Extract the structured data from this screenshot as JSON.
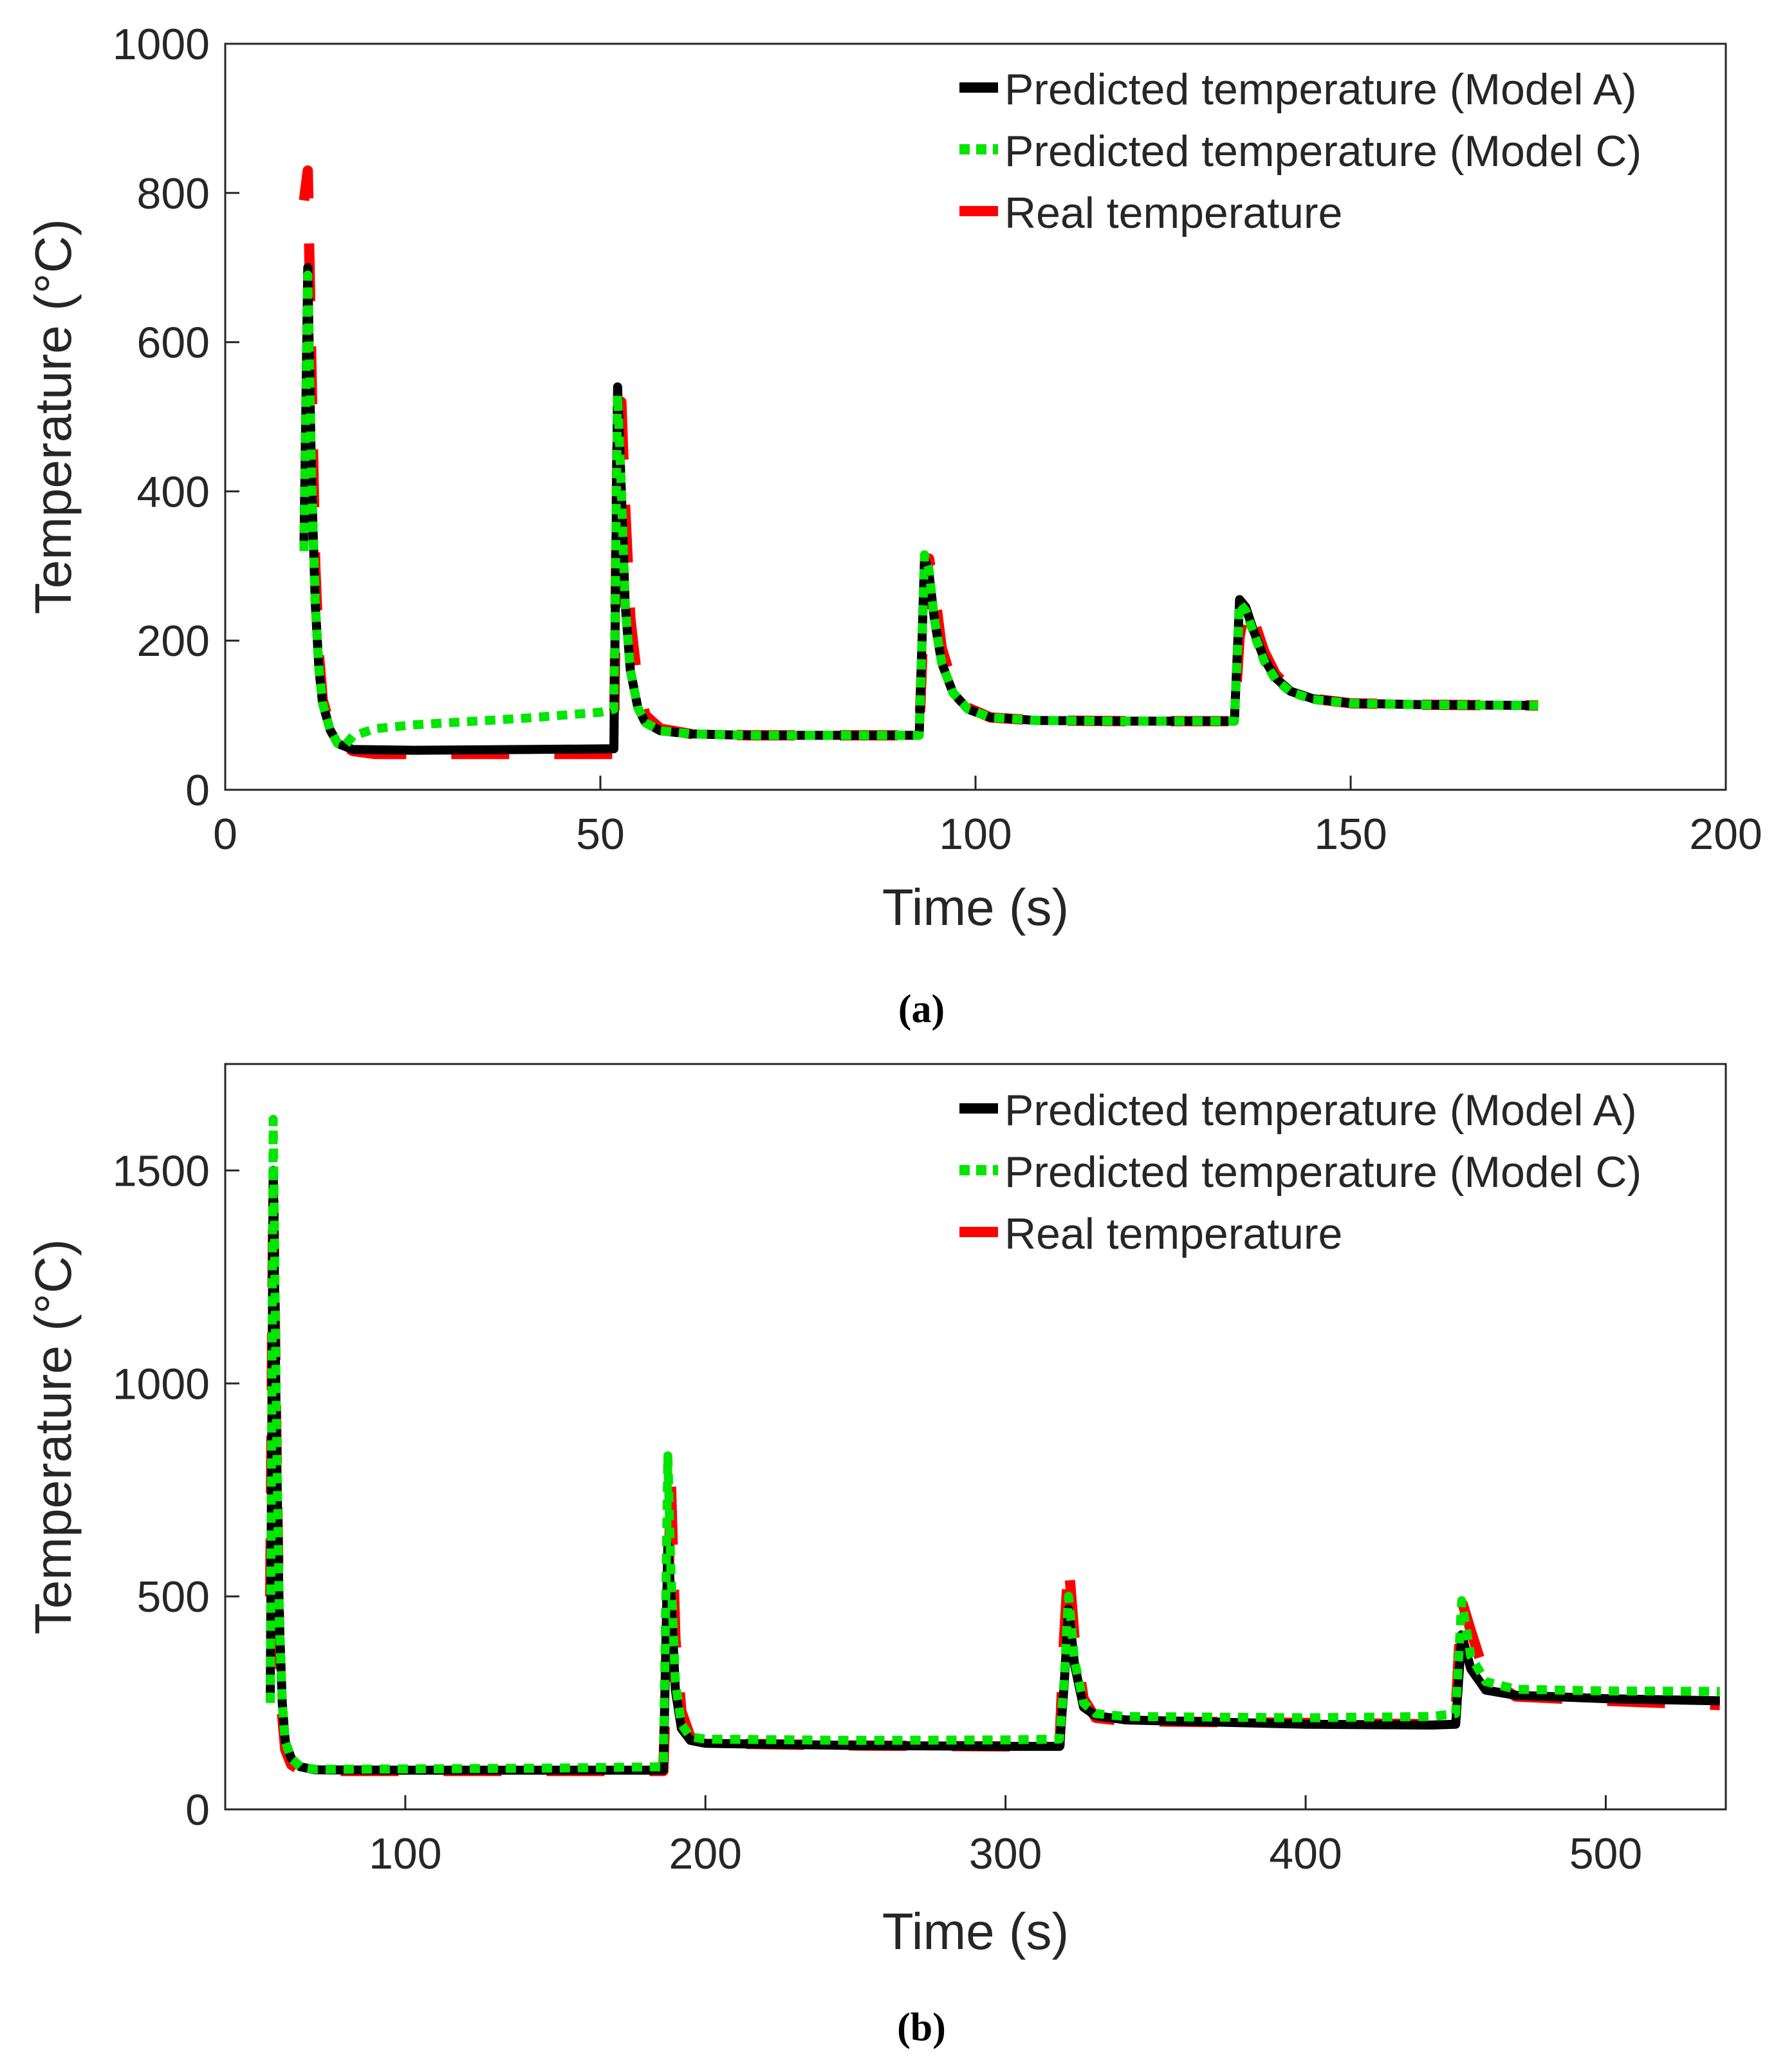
{
  "chart_data": [
    {
      "type": "line",
      "caption": "(a)",
      "xlabel": "Time (s)",
      "ylabel": "Temperature (°C)",
      "xlim": [
        0,
        200
      ],
      "ylim": [
        0,
        1000
      ],
      "xticks": [
        0,
        50,
        100,
        150,
        200
      ],
      "yticks": [
        0,
        200,
        400,
        600,
        800,
        1000
      ],
      "grid": false,
      "legend_position": "top-right",
      "series": [
        {
          "name": "Predicted temperature (Model A)",
          "color": "#000000",
          "style": "solid",
          "points": [
            [
              10.5,
              330
            ],
            [
              11,
              700
            ],
            [
              11.5,
              420
            ],
            [
              12,
              250
            ],
            [
              12.5,
              160
            ],
            [
              13,
              115
            ],
            [
              14,
              80
            ],
            [
              15,
              62
            ],
            [
              17,
              54
            ],
            [
              25,
              53
            ],
            [
              40,
              54
            ],
            [
              51.8,
              55
            ],
            [
              52.3,
              540
            ],
            [
              52.8,
              400
            ],
            [
              53.3,
              250
            ],
            [
              54,
              160
            ],
            [
              55,
              110
            ],
            [
              56,
              90
            ],
            [
              58,
              79
            ],
            [
              62,
              75
            ],
            [
              70,
              73
            ],
            [
              80,
              73
            ],
            [
              92.5,
              73
            ],
            [
              93.2,
              310
            ],
            [
              93.8,
              290
            ],
            [
              94.5,
              230
            ],
            [
              95.5,
              170
            ],
            [
              97,
              130
            ],
            [
              99,
              108
            ],
            [
              102,
              97
            ],
            [
              108,
              93
            ],
            [
              120,
              92
            ],
            [
              134.5,
              92
            ],
            [
              135.2,
              255
            ],
            [
              136,
              245
            ],
            [
              137,
              215
            ],
            [
              138.5,
              175
            ],
            [
              140,
              150
            ],
            [
              142,
              132
            ],
            [
              145,
              122
            ],
            [
              150,
              116
            ],
            [
              160,
              114
            ],
            [
              175,
              113
            ]
          ]
        },
        {
          "name": "Predicted temperature (Model C)",
          "color": "#00e600",
          "style": "dotted",
          "points": [
            [
              10.5,
              320
            ],
            [
              11,
              690
            ],
            [
              11.5,
              420
            ],
            [
              12,
              250
            ],
            [
              12.5,
              160
            ],
            [
              13,
              115
            ],
            [
              14,
              80
            ],
            [
              15,
              62
            ],
            [
              16,
              60
            ],
            [
              17,
              72
            ],
            [
              20,
              82
            ],
            [
              25,
              87
            ],
            [
              30,
              90
            ],
            [
              40,
              96
            ],
            [
              50,
              104
            ],
            [
              51.8,
              108
            ],
            [
              52.3,
              530
            ],
            [
              52.8,
              400
            ],
            [
              53.3,
              250
            ],
            [
              54,
              160
            ],
            [
              55,
              110
            ],
            [
              56,
              90
            ],
            [
              58,
              79
            ],
            [
              62,
              75
            ],
            [
              70,
              73
            ],
            [
              80,
              73
            ],
            [
              92.5,
              73
            ],
            [
              93.2,
              315
            ],
            [
              93.8,
              295
            ],
            [
              94.5,
              230
            ],
            [
              95.5,
              170
            ],
            [
              97,
              130
            ],
            [
              99,
              108
            ],
            [
              102,
              97
            ],
            [
              108,
              93
            ],
            [
              120,
              92
            ],
            [
              134.5,
              92
            ],
            [
              135.2,
              250
            ],
            [
              136,
              240
            ],
            [
              137,
              212
            ],
            [
              138.5,
              172
            ],
            [
              140,
              148
            ],
            [
              142,
              131
            ],
            [
              145,
              121
            ],
            [
              150,
              116
            ],
            [
              160,
              114
            ],
            [
              175,
              113
            ]
          ]
        },
        {
          "name": "Real temperature",
          "color": "#ff0000",
          "style": "dashed",
          "points": [
            [
              10.5,
              790
            ],
            [
              11,
              830
            ],
            [
              11.5,
              560
            ],
            [
              12,
              300
            ],
            [
              12.5,
              180
            ],
            [
              13,
              120
            ],
            [
              14,
              85
            ],
            [
              15,
              64
            ],
            [
              17,
              52
            ],
            [
              20,
              48
            ],
            [
              30,
              48
            ],
            [
              40,
              48
            ],
            [
              51.8,
              48
            ],
            [
              52.3,
              480
            ],
            [
              52.8,
              520
            ],
            [
              53.3,
              380
            ],
            [
              54,
              230
            ],
            [
              55,
              140
            ],
            [
              56,
              100
            ],
            [
              58,
              82
            ],
            [
              62,
              75
            ],
            [
              70,
              73
            ],
            [
              80,
              73
            ],
            [
              92.5,
              73
            ],
            [
              93.2,
              260
            ],
            [
              93.8,
              310
            ],
            [
              94.5,
              270
            ],
            [
              95.5,
              190
            ],
            [
              97,
              140
            ],
            [
              99,
              110
            ],
            [
              102,
              97
            ],
            [
              108,
              93
            ],
            [
              120,
              92
            ],
            [
              134.5,
              92
            ],
            [
              135.2,
              205
            ],
            [
              136,
              248
            ],
            [
              137,
              230
            ],
            [
              138.5,
              185
            ],
            [
              140,
              155
            ],
            [
              142,
              134
            ],
            [
              145,
              122
            ],
            [
              150,
              116
            ],
            [
              160,
              114
            ],
            [
              175,
              113
            ]
          ]
        }
      ]
    },
    {
      "type": "line",
      "caption": "(b)",
      "xlabel": "Time (s)",
      "ylabel": "Temperature (°C)",
      "xlim": [
        40,
        540
      ],
      "ylim": [
        0,
        1750
      ],
      "xticks": [
        100,
        200,
        300,
        400,
        500
      ],
      "yticks": [
        0,
        500,
        1000,
        1500
      ],
      "grid": false,
      "legend_position": "top-right",
      "series": [
        {
          "name": "Predicted temperature (Model A)",
          "color": "#000000",
          "style": "solid",
          "points": [
            [
              55,
              250
            ],
            [
              56,
              1500
            ],
            [
              57,
              900
            ],
            [
              58,
              450
            ],
            [
              59,
              250
            ],
            [
              60,
              160
            ],
            [
              62,
              120
            ],
            [
              65,
              100
            ],
            [
              70,
              93
            ],
            [
              100,
              92
            ],
            [
              150,
              92
            ],
            [
              186,
              92
            ],
            [
              187.5,
              620
            ],
            [
              188.5,
              500
            ],
            [
              190,
              280
            ],
            [
              192,
              190
            ],
            [
              195,
              162
            ],
            [
              200,
              155
            ],
            [
              250,
              150
            ],
            [
              300,
              148
            ],
            [
              318,
              148
            ],
            [
              319.5,
              290
            ],
            [
              321,
              470
            ],
            [
              323,
              340
            ],
            [
              326,
              240
            ],
            [
              330,
              220
            ],
            [
              340,
              210
            ],
            [
              400,
              200
            ],
            [
              442,
              198
            ],
            [
              450,
              200
            ],
            [
              452,
              410
            ],
            [
              455,
              330
            ],
            [
              460,
              280
            ],
            [
              470,
              268
            ],
            [
              500,
              260
            ],
            [
              538,
              255
            ]
          ]
        },
        {
          "name": "Predicted temperature (Model C)",
          "color": "#00e600",
          "style": "dotted",
          "points": [
            [
              55,
              250
            ],
            [
              56,
              1620
            ],
            [
              57,
              950
            ],
            [
              58,
              450
            ],
            [
              59,
              250
            ],
            [
              60,
              160
            ],
            [
              62,
              120
            ],
            [
              65,
              100
            ],
            [
              70,
              94
            ],
            [
              100,
              95
            ],
            [
              150,
              97
            ],
            [
              186,
              100
            ],
            [
              187.5,
              830
            ],
            [
              188.5,
              560
            ],
            [
              190,
              300
            ],
            [
              192,
              200
            ],
            [
              195,
              170
            ],
            [
              200,
              165
            ],
            [
              250,
              162
            ],
            [
              300,
              163
            ],
            [
              318,
              165
            ],
            [
              319.5,
              300
            ],
            [
              321,
              500
            ],
            [
              323,
              350
            ],
            [
              326,
              250
            ],
            [
              330,
              225
            ],
            [
              340,
              218
            ],
            [
              400,
              215
            ],
            [
              442,
              218
            ],
            [
              450,
              225
            ],
            [
              452,
              490
            ],
            [
              455,
              360
            ],
            [
              460,
              300
            ],
            [
              470,
              282
            ],
            [
              500,
              278
            ],
            [
              538,
              277
            ]
          ]
        },
        {
          "name": "Real temperature",
          "color": "#ff0000",
          "style": "dashed",
          "points": [
            [
              55,
              500
            ],
            [
              56,
              1450
            ],
            [
              57,
              900
            ],
            [
              58,
              400
            ],
            [
              59,
              220
            ],
            [
              60,
              140
            ],
            [
              62,
              105
            ],
            [
              65,
              92
            ],
            [
              70,
              90
            ],
            [
              100,
              90
            ],
            [
              150,
              90
            ],
            [
              186,
              90
            ],
            [
              187.5,
              450
            ],
            [
              188.5,
              770
            ],
            [
              190,
              400
            ],
            [
              192,
              230
            ],
            [
              195,
              170
            ],
            [
              200,
              155
            ],
            [
              250,
              150
            ],
            [
              300,
              148
            ],
            [
              318,
              150
            ],
            [
              319.5,
              400
            ],
            [
              321,
              580
            ],
            [
              323,
              400
            ],
            [
              326,
              260
            ],
            [
              330,
              215
            ],
            [
              340,
              207
            ],
            [
              400,
              203
            ],
            [
              442,
              200
            ],
            [
              450,
              230
            ],
            [
              452,
              490
            ],
            [
              455,
              420
            ],
            [
              460,
              310
            ],
            [
              470,
              265
            ],
            [
              500,
              255
            ],
            [
              538,
              245
            ]
          ]
        }
      ]
    }
  ]
}
